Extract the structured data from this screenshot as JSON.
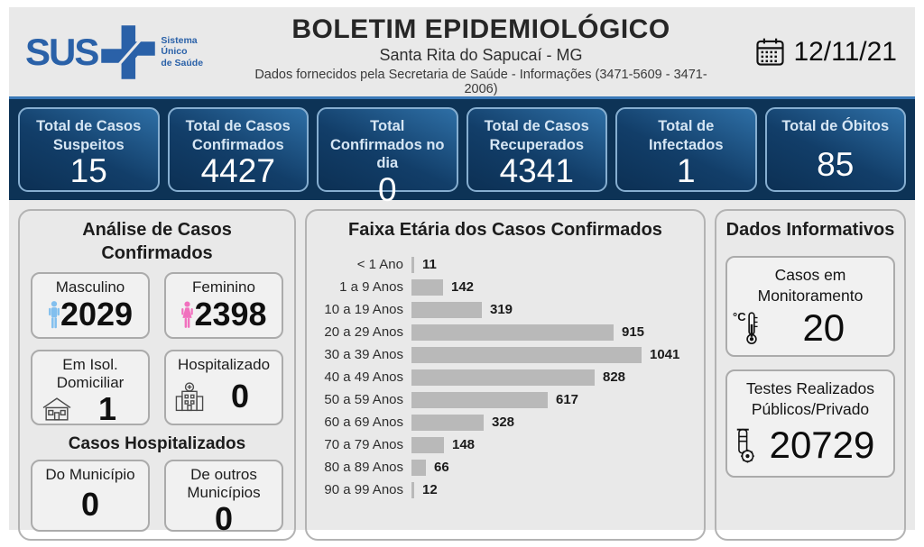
{
  "header": {
    "logo": {
      "text": "SUS",
      "tagline_lines": [
        "Sistema",
        "Único",
        "de Saúde"
      ]
    },
    "title": "BOLETIM EPIDEMIOLÓGICO",
    "subtitle": "Santa Rita do Sapucaí - MG",
    "info_line": "Dados fornecidos pela Secretaria de Saúde - Informações (3471-5609 - 3471-2006)",
    "date": "12/11/21"
  },
  "stats": [
    {
      "label": "Total de Casos Suspeitos",
      "value": "15"
    },
    {
      "label": "Total de Casos Confirmados",
      "value": "4427"
    },
    {
      "label": "Total Confirmados no dia",
      "value": "0"
    },
    {
      "label": "Total de Casos Recuperados",
      "value": "4341"
    },
    {
      "label": "Total de Infectados",
      "value": "1"
    },
    {
      "label": "Total de Óbitos",
      "value": "85"
    }
  ],
  "analysis": {
    "title": "Análise de Casos Confirmados",
    "male": {
      "label": "Masculino",
      "value": "2029"
    },
    "female": {
      "label": "Feminino",
      "value": "2398"
    },
    "isolation": {
      "label": "Em Isol. Domiciliar",
      "value": "1"
    },
    "hospitalized": {
      "label": "Hospitalizado",
      "value": "0"
    },
    "hospitalized_title": "Casos Hospitalizados",
    "municipio": {
      "label": "Do Município",
      "value": "0"
    },
    "other_municipio": {
      "label": "De outros Municípios",
      "value": "0"
    }
  },
  "chart_data": {
    "type": "bar",
    "orientation": "horizontal",
    "title": "Faixa Etária dos Casos Confirmados",
    "categories": [
      "< 1 Ano",
      "1 a 9 Anos",
      "10 a 19 Anos",
      "20 a 29 Anos",
      "30 a 39 Anos",
      "40 a 49 Anos",
      "50 a 59 Anos",
      "60 a 69 Anos",
      "70 a 79 Anos",
      "80 a 89 Anos",
      "90 a 99 Anos"
    ],
    "values": [
      11,
      142,
      319,
      915,
      1041,
      828,
      617,
      328,
      148,
      66,
      12
    ],
    "xlabel": "",
    "ylabel": "",
    "xlim": [
      0,
      1100
    ],
    "grid": false,
    "legend": false,
    "data_labels": true,
    "bar_color": "#b9b9b9"
  },
  "info_panel": {
    "title": "Dados Informativos",
    "monitoring": {
      "label": "Casos em Monitoramento",
      "unit": "°C",
      "value": "20"
    },
    "tests": {
      "label": "Testes Realizados Públicos/Privado",
      "value": "20729"
    }
  },
  "colors": {
    "page_bg": "#e9e9e9",
    "navy": "#0d3356",
    "stat_border": "#86aed0",
    "stat_grad_a": "#2e6fa6",
    "stat_grad_b": "#0c3054",
    "sus_blue": "#2a61a8",
    "male": "#82bfee",
    "female": "#f171be",
    "bar_color": "#b9b9b9",
    "panel_border": "#b3b3b3"
  }
}
